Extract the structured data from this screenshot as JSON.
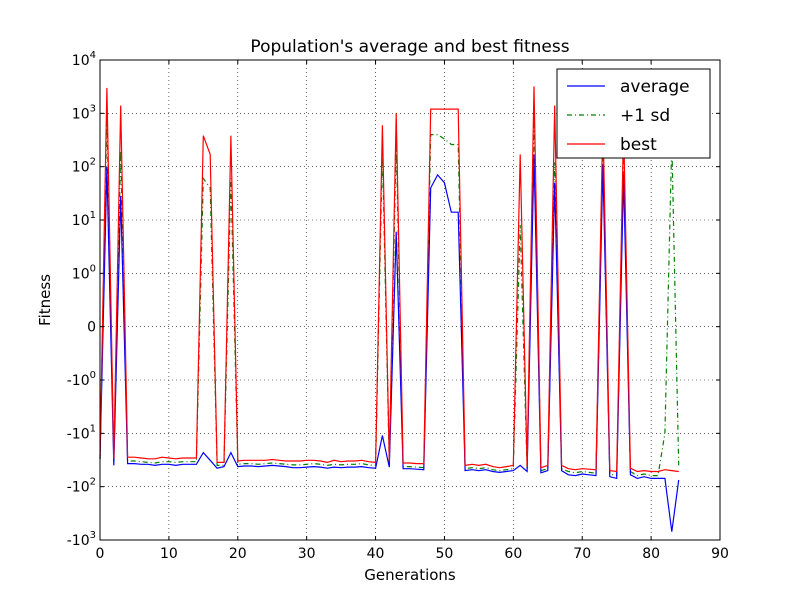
{
  "chart_data": {
    "type": "line",
    "title": "Population's average and best fitness",
    "xlabel": "Generations",
    "ylabel": "Fitness",
    "xlim": [
      0,
      90
    ],
    "y_scale": "symlog",
    "ylim": [
      -1000,
      10000
    ],
    "grid": true,
    "legend_position": "top-right",
    "x_ticks": [
      "0",
      "10",
      "20",
      "30",
      "40",
      "50",
      "60",
      "70",
      "80",
      "90"
    ],
    "y_ticks": [
      {
        "base": "10",
        "exp": "4"
      },
      {
        "base": "10",
        "exp": "3"
      },
      {
        "base": "10",
        "exp": "2"
      },
      {
        "base": "10",
        "exp": "1"
      },
      {
        "base": "10",
        "exp": "0"
      },
      {
        "base": "0",
        "exp": ""
      },
      {
        "base": "-10",
        "exp": "0"
      },
      {
        "base": "-10",
        "exp": "1"
      },
      {
        "base": "-10",
        "exp": "2"
      },
      {
        "base": "-10",
        "exp": "3"
      }
    ],
    "colors": {
      "average": "#0000ff",
      "sd": "#008000",
      "best": "#ff0000"
    },
    "series": [
      {
        "name": "average",
        "values": [
          -30,
          100,
          -40,
          28,
          -37,
          -37,
          -38,
          -38,
          -40,
          -38,
          -38,
          -40,
          -38,
          -38,
          -38,
          -23,
          -32,
          -45,
          -42,
          -23,
          -42,
          -41,
          -41,
          -42,
          -41,
          -40,
          -41,
          -42,
          -44,
          -44,
          -43,
          -42,
          -43,
          -45,
          -43,
          -44,
          -43,
          -43,
          -42,
          -44,
          -45,
          -11,
          -43,
          6,
          -46,
          -46,
          -47,
          -48,
          40,
          70,
          50,
          14,
          14,
          -50,
          -48,
          -50,
          -48,
          -52,
          -54,
          -52,
          -50,
          -40,
          -52,
          170,
          -55,
          -50,
          50,
          -50,
          -60,
          -62,
          -58,
          -60,
          -62,
          110,
          -65,
          -70,
          70,
          -60,
          -70,
          -65,
          -70,
          -70,
          -70,
          -700,
          -75
        ]
      },
      {
        "name": "+1 sd",
        "values": [
          -30,
          900,
          -30,
          200,
          -33,
          -33,
          -34,
          -35,
          -36,
          -34,
          -34,
          -35,
          -34,
          -34,
          -34,
          60,
          40,
          -40,
          -40,
          60,
          -38,
          -37,
          -37,
          -38,
          -37,
          -36,
          -37,
          -38,
          -39,
          -39,
          -38,
          -37,
          -38,
          -40,
          -38,
          -39,
          -38,
          -38,
          -37,
          -39,
          -40,
          200,
          -40,
          300,
          -42,
          -42,
          -43,
          -44,
          400,
          400,
          330,
          260,
          260,
          -46,
          -44,
          -46,
          -44,
          -48,
          -50,
          -48,
          -46,
          8,
          -48,
          1000,
          -50,
          -46,
          120,
          -46,
          -52,
          -55,
          -52,
          -54,
          -56,
          200,
          -58,
          -62,
          160,
          -52,
          -62,
          -58,
          -62,
          -62,
          -10,
          300,
          -40
        ]
      },
      {
        "name": "best",
        "values": [
          -30,
          3000,
          -30,
          1400,
          -28,
          -28,
          -29,
          -30,
          -30,
          -28,
          -29,
          -30,
          -29,
          -29,
          -29,
          380,
          170,
          -35,
          -35,
          380,
          -33,
          -32,
          -32,
          -32,
          -32,
          -31,
          -32,
          -33,
          -33,
          -33,
          -32,
          -32,
          -33,
          -35,
          -32,
          -34,
          -33,
          -33,
          -32,
          -34,
          -35,
          600,
          -34,
          1000,
          -36,
          -36,
          -37,
          -37,
          1200,
          1200,
          1200,
          1200,
          1200,
          -40,
          -38,
          -40,
          -38,
          -42,
          -44,
          -42,
          -40,
          170,
          -42,
          3200,
          -44,
          -40,
          1400,
          -40,
          -46,
          -48,
          -46,
          -47,
          -48,
          800,
          -50,
          -52,
          600,
          -45,
          -52,
          -50,
          -52,
          -52,
          -48,
          -50,
          -52
        ]
      }
    ]
  }
}
